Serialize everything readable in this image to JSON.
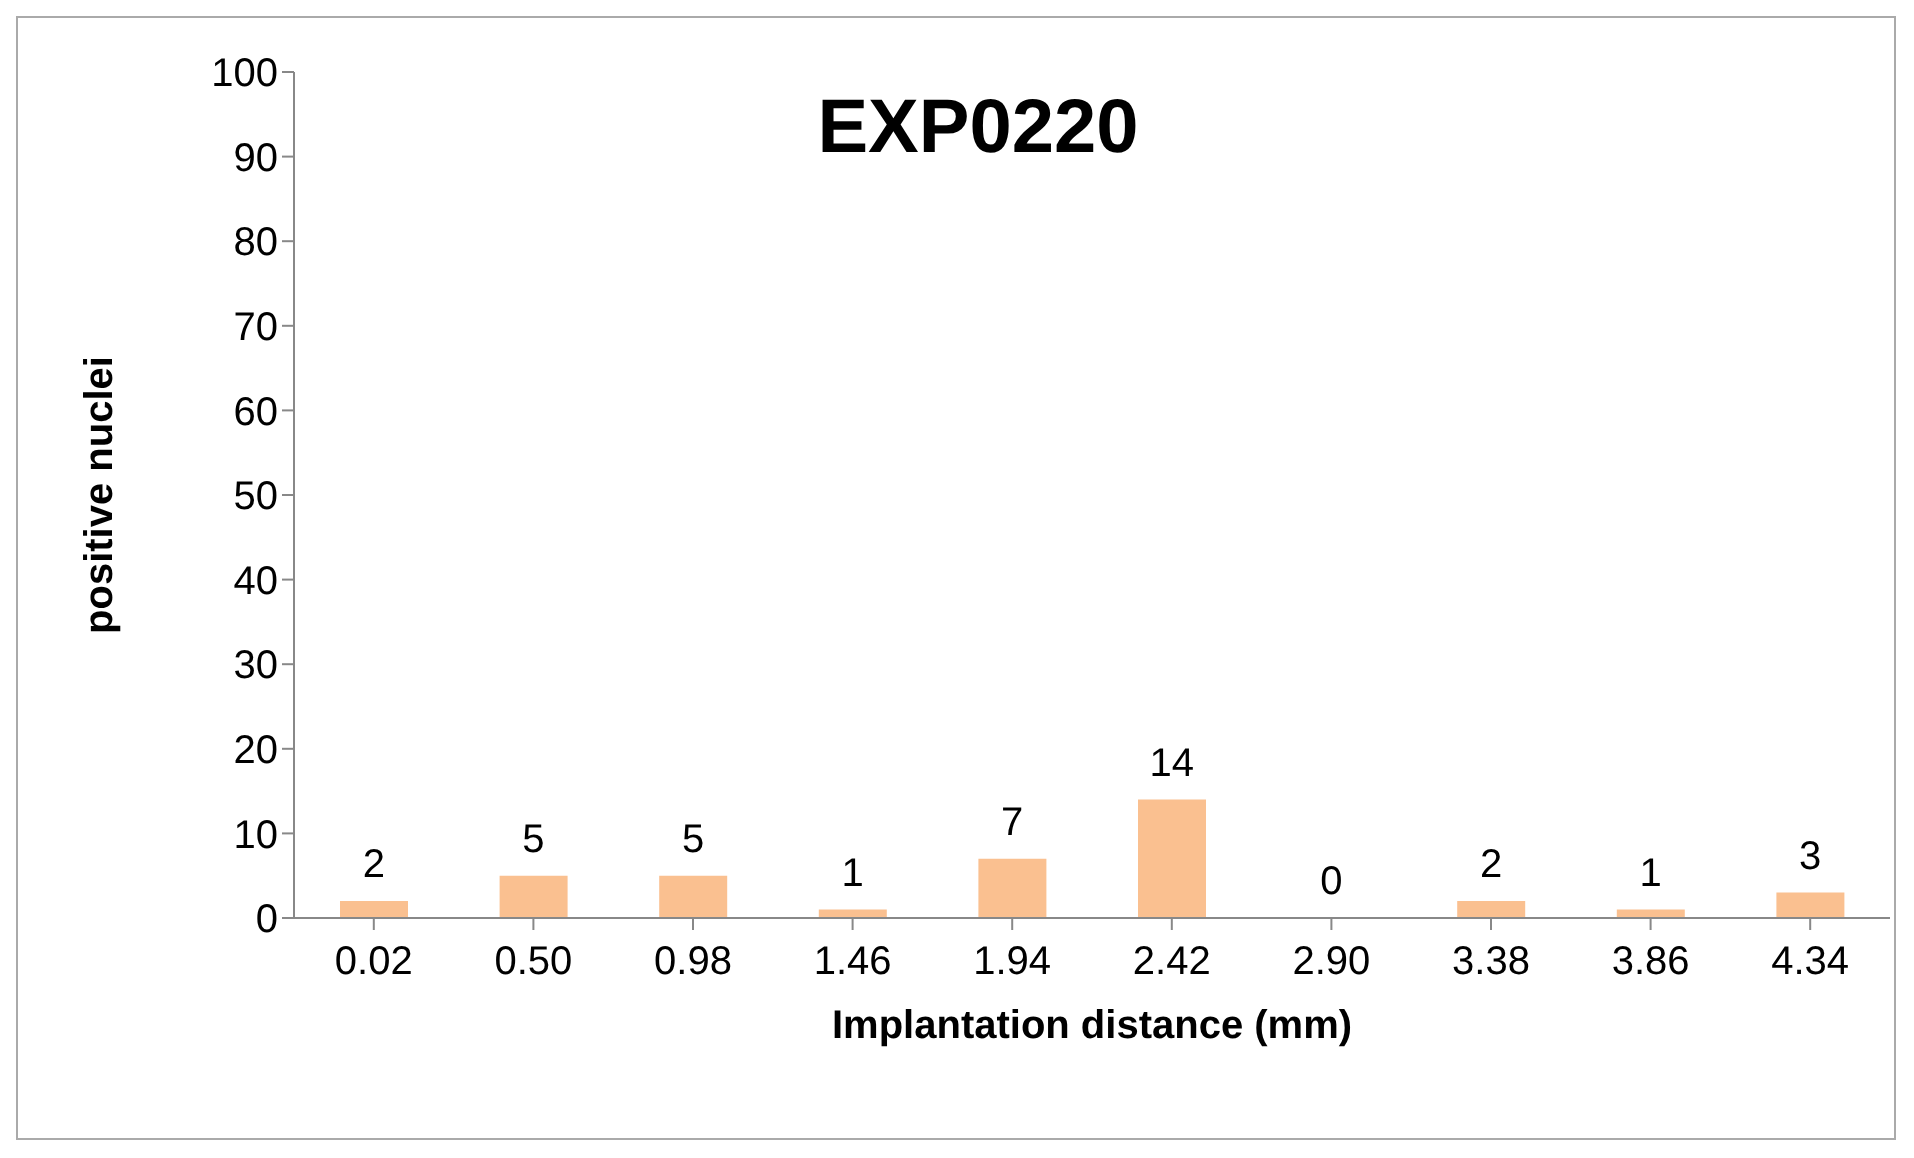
{
  "chart_data": {
    "type": "bar",
    "title": "EXP0220",
    "xlabel": "Implantation distance (mm)",
    "ylabel": "positive nuclei",
    "categories": [
      "0.02",
      "0.50",
      "0.98",
      "1.46",
      "1.94",
      "2.42",
      "2.90",
      "3.38",
      "3.86",
      "4.34"
    ],
    "values": [
      2,
      5,
      5,
      1,
      7,
      14,
      0,
      2,
      1,
      3
    ],
    "color": "#fac090",
    "ylim": [
      0,
      100
    ],
    "yticks": [
      0,
      10,
      20,
      30,
      40,
      50,
      60,
      70,
      80,
      90,
      100
    ],
    "grid": false,
    "data_labels": true
  }
}
